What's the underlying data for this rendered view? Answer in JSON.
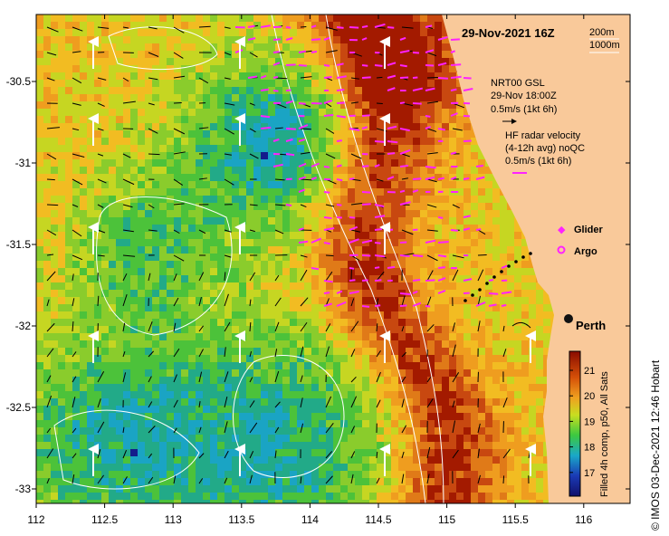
{
  "map": {
    "date_label": "29-Nov-2021 16Z",
    "contour_labels": [
      "200m",
      "1000m"
    ],
    "gsl_label_lines": [
      "NRT00 GSL",
      "29-Nov 18:00Z",
      "0.5m/s (1kt 6h)"
    ],
    "hf_label_lines": [
      "HF radar velocity",
      "(4-12h avg) noQC",
      "0.5m/s (1kt 6h)"
    ],
    "legend": [
      {
        "name": "Glider",
        "color": "#ff22ff"
      },
      {
        "name": "Argo",
        "color": "#ff22ff"
      }
    ],
    "city": "Perth",
    "colorbar": {
      "ticks": [
        "21",
        "20",
        "19",
        "18",
        "17"
      ],
      "title": "Filled 4h comp, p50, All Sats"
    },
    "side_credit": "© IMOS 03-Dec-2021 12:46 Hobart",
    "x_ticks": [
      "112",
      "112.5",
      "113",
      "113.5",
      "114",
      "114.5",
      "115",
      "115.5",
      "116"
    ],
    "y_ticks": [
      "-30.5",
      "-31",
      "-31.5",
      "-32",
      "-32.5",
      "-33"
    ],
    "colors": {
      "land": "#f9c99a",
      "warm": "#a31a00",
      "orange": "#ef9d1f",
      "green": "#4cc23a",
      "cyan": "#1aa4c4",
      "blue": "#141c8c",
      "vector_hf": "#ff22ff"
    }
  }
}
